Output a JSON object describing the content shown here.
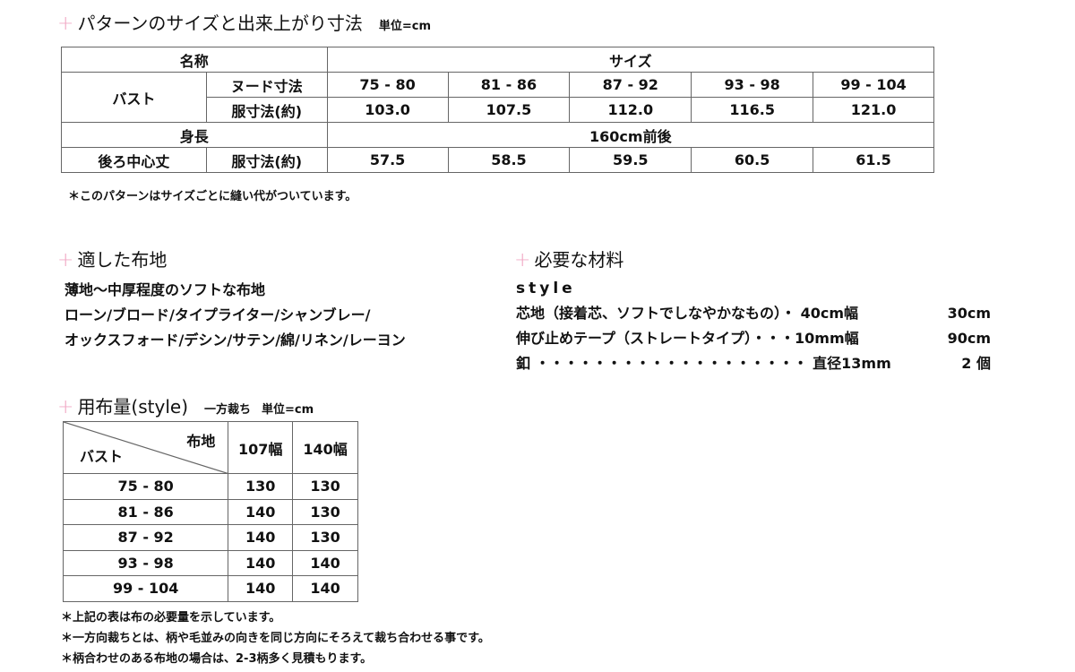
{
  "size_section": {
    "title": "パターンのサイズと出来上がり寸法",
    "unit": "単位=cm",
    "header_name": "名称",
    "header_size": "サイズ",
    "bust_label": "バスト",
    "nude_label": "ヌード寸法",
    "garment_label": "服寸法(約)",
    "sizes": [
      "75 - 80",
      "81 - 86",
      "87 - 92",
      "93 - 98",
      "99 - 104"
    ],
    "bust_garment": [
      "103.0",
      "107.5",
      "112.0",
      "116.5",
      "121.0"
    ],
    "height_label": "身長",
    "height_value": "160cm前後",
    "back_label": "後ろ中心丈",
    "back_sub": "服寸法(約)",
    "back_values": [
      "57.5",
      "58.5",
      "59.5",
      "60.5",
      "61.5"
    ],
    "note": "＊このパターンはサイズごとに縫い代がついています。"
  },
  "fabric_section": {
    "title": "適した布地",
    "lines": [
      "薄地〜中厚程度のソフトな布地",
      "ローン/ブロード/タイプライター/シャンブレー/",
      "オックスフォード/デシン/サテン/綿/リネン/レーヨン"
    ]
  },
  "materials_section": {
    "title": "必要な材料",
    "style": "style",
    "items": [
      {
        "name": "芯地（接着芯、ソフトでしなやかなもの）・ 40cm幅",
        "qty": "30cm"
      },
      {
        "name": "伸び止めテープ（ストレートタイプ）・・・10mm幅",
        "qty": "90cm"
      },
      {
        "name": "釦 ・・・・・・・・・・・・・・・・・・・ 直径13mm",
        "qty": "2 個"
      }
    ]
  },
  "yardage_section": {
    "title": "用布量(style)",
    "cut": "一方裁ち",
    "unit": "単位=cm",
    "corner_top": "布地",
    "corner_bottom": "バスト",
    "col_headers": [
      "107幅",
      "140幅"
    ],
    "rows": [
      {
        "bust": "75 - 80",
        "w107": "130",
        "w140": "130"
      },
      {
        "bust": "81 - 86",
        "w107": "140",
        "w140": "130"
      },
      {
        "bust": "87 - 92",
        "w107": "140",
        "w140": "130"
      },
      {
        "bust": "93 - 98",
        "w107": "140",
        "w140": "140"
      },
      {
        "bust": "99 - 104",
        "w107": "140",
        "w140": "140"
      }
    ],
    "notes": [
      "＊上記の表は布の必要量を示しています。",
      "＊一方向裁ちとは、柄や毛並みの向きを同じ方向にそろえて裁ち合わせる事です。",
      "＊柄合わせのある布地の場合は、2-3柄多く見積もります。"
    ]
  },
  "colors": {
    "plus": "#f0a8c4",
    "border": "#666666"
  }
}
